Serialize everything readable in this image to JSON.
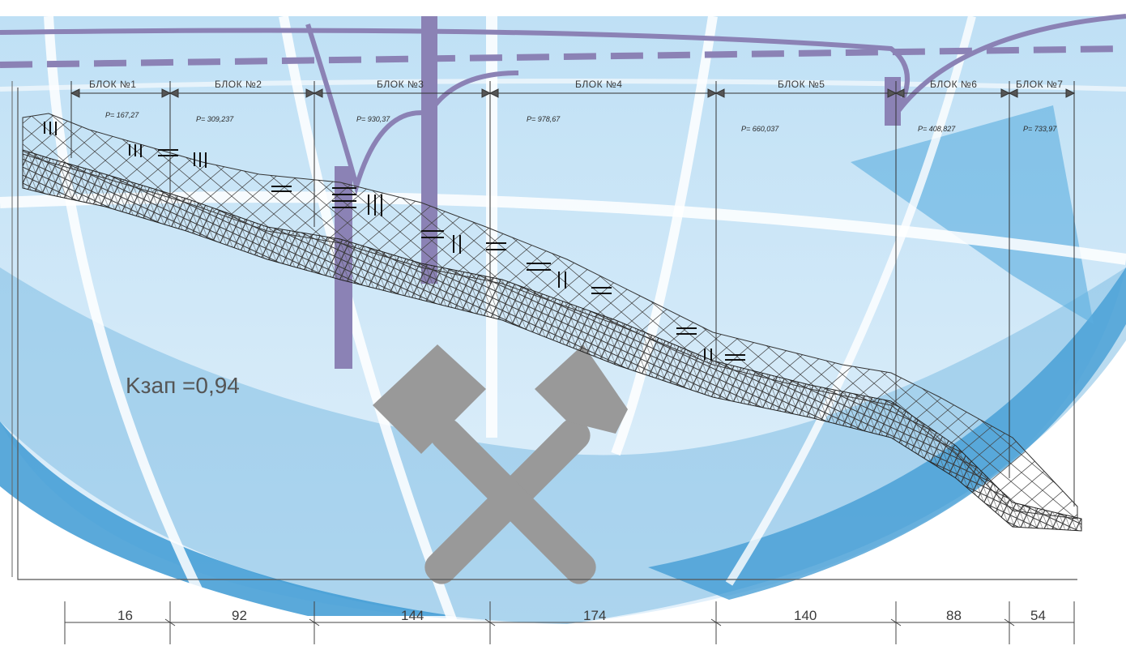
{
  "blocks": [
    {
      "label": "БЛОК №1",
      "p": "P= 167,27"
    },
    {
      "label": "БЛОК №2",
      "p": "P= 309,237"
    },
    {
      "label": "БЛОК №3",
      "p": "P= 930,37"
    },
    {
      "label": "БЛОК №4",
      "p": "P= 978,67"
    },
    {
      "label": "БЛОК №5",
      "p": "P= 660,037"
    },
    {
      "label": "БЛОК №6",
      "p": "P= 408,827"
    },
    {
      "label": "БЛОК №7",
      "p": "P= 733,97"
    }
  ],
  "dimensions": [
    "16",
    "92",
    "144",
    "174",
    "140",
    "88",
    "54"
  ],
  "coefficient": "Kзап =0,94",
  "logo": {
    "icon": "crossed-hammers-icon",
    "color": "#999999",
    "accent": "#4a9fd4"
  }
}
